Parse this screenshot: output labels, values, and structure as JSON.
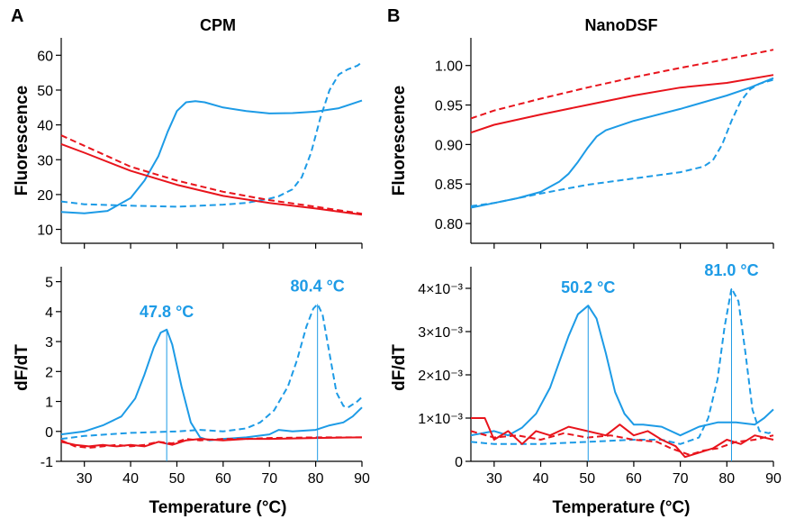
{
  "colors": {
    "blue": "#1d9be6",
    "red": "#e8141c",
    "axis": "#000000"
  },
  "xlabel": "Temperature (°C)",
  "chart_data": [
    {
      "id": "cpm_fluor",
      "panel_letter": "A",
      "title": "CPM",
      "type": "line",
      "ylabel": "Fluorescence",
      "xlim": [
        25,
        90
      ],
      "ylim": [
        6,
        65
      ],
      "xticks": [
        30,
        40,
        50,
        60,
        70,
        80,
        90
      ],
      "xtick_labels": [],
      "yticks": [
        10,
        20,
        30,
        40,
        50,
        60
      ],
      "ytick_labels": [
        "10",
        "20",
        "30",
        "40",
        "50",
        "60"
      ],
      "series": [
        {
          "color": "blue",
          "dashed": false,
          "x": [
            25,
            30,
            35,
            40,
            43,
            46,
            48,
            50,
            52,
            54,
            56,
            60,
            65,
            70,
            75,
            80,
            85,
            90
          ],
          "y": [
            15,
            14.6,
            15.3,
            19,
            24,
            31,
            38,
            44,
            46.5,
            46.8,
            46.5,
            45,
            44,
            43.3,
            43.4,
            43.8,
            44.8,
            47
          ]
        },
        {
          "color": "blue",
          "dashed": true,
          "x": [
            25,
            30,
            40,
            50,
            55,
            60,
            65,
            70,
            72,
            75,
            77,
            79,
            81,
            83,
            85,
            87,
            89,
            90
          ],
          "y": [
            18,
            17.2,
            16.8,
            16.5,
            16.8,
            17.1,
            17.6,
            18.8,
            19.5,
            21.5,
            25,
            32,
            42,
            50,
            54.5,
            56,
            57,
            58
          ]
        },
        {
          "color": "red",
          "dashed": false,
          "x": [
            25,
            30,
            40,
            50,
            60,
            70,
            80,
            90
          ],
          "y": [
            34.5,
            32,
            26.8,
            22.8,
            19.6,
            17.6,
            16,
            14.2
          ]
        },
        {
          "color": "red",
          "dashed": true,
          "x": [
            25,
            30,
            40,
            50,
            60,
            70,
            80,
            90
          ],
          "y": [
            37,
            34,
            28,
            24,
            20.8,
            18.4,
            16.5,
            14.5
          ]
        }
      ]
    },
    {
      "id": "cpm_deriv",
      "panel_letter": "",
      "title": "",
      "type": "line",
      "ylabel": "dF/dT",
      "xlim": [
        25,
        90
      ],
      "ylim": [
        -1,
        5.5
      ],
      "xticks": [
        30,
        40,
        50,
        60,
        70,
        80,
        90
      ],
      "xtick_labels": [
        "30",
        "40",
        "50",
        "60",
        "70",
        "80",
        "90"
      ],
      "yticks": [
        -1,
        0,
        1,
        2,
        3,
        4,
        5
      ],
      "ytick_labels": [
        "-1",
        "0",
        "1",
        "2",
        "3",
        "4",
        "5"
      ],
      "series": [
        {
          "color": "blue",
          "dashed": false,
          "x": [
            25,
            30,
            34,
            38,
            41,
            43,
            45,
            46.5,
            47.8,
            49,
            51,
            53,
            55,
            57,
            60,
            65,
            70,
            72,
            75,
            80,
            83,
            86,
            88,
            90
          ],
          "y": [
            -0.1,
            0,
            0.2,
            0.5,
            1.1,
            1.9,
            2.8,
            3.3,
            3.4,
            2.9,
            1.5,
            0.3,
            -0.2,
            -0.3,
            -0.25,
            -0.2,
            -0.1,
            0.05,
            0,
            0.05,
            0.2,
            0.3,
            0.5,
            0.8
          ]
        },
        {
          "color": "blue",
          "dashed": true,
          "x": [
            25,
            30,
            40,
            50,
            55,
            60,
            65,
            68,
            71,
            74,
            76,
            78,
            79.5,
            80.4,
            81.5,
            83,
            84.5,
            86,
            87,
            89,
            90
          ],
          "y": [
            -0.25,
            -0.15,
            -0.05,
            0,
            0.05,
            0,
            0.1,
            0.3,
            0.7,
            1.5,
            2.4,
            3.5,
            4.1,
            4.25,
            3.9,
            2.6,
            1.3,
            0.85,
            0.8,
            1,
            1.15
          ]
        },
        {
          "color": "red",
          "dashed": false,
          "x": [
            25,
            28,
            31,
            34,
            37,
            40,
            43,
            46,
            49,
            52,
            55,
            60,
            65,
            70,
            80,
            90
          ],
          "y": [
            -0.35,
            -0.45,
            -0.5,
            -0.45,
            -0.5,
            -0.45,
            -0.5,
            -0.35,
            -0.45,
            -0.3,
            -0.25,
            -0.3,
            -0.25,
            -0.25,
            -0.22,
            -0.2
          ]
        },
        {
          "color": "red",
          "dashed": true,
          "x": [
            25,
            28,
            31,
            34,
            37,
            40,
            43,
            46,
            49,
            52,
            55,
            60,
            65,
            70,
            80,
            90
          ],
          "y": [
            -0.3,
            -0.5,
            -0.55,
            -0.5,
            -0.45,
            -0.5,
            -0.45,
            -0.35,
            -0.4,
            -0.25,
            -0.3,
            -0.25,
            -0.25,
            -0.22,
            -0.2,
            -0.2
          ]
        }
      ],
      "peaks": [
        {
          "x": 47.8,
          "y": 3.4,
          "label": "47.8 °C"
        },
        {
          "x": 80.4,
          "y": 4.25,
          "label": "80.4 °C"
        }
      ]
    },
    {
      "id": "nanodsf_fluor",
      "panel_letter": "B",
      "title": "NanoDSF",
      "type": "line",
      "ylabel": "Fluorescence",
      "xlim": [
        25,
        90
      ],
      "ylim": [
        0.775,
        1.035
      ],
      "xticks": [
        30,
        40,
        50,
        60,
        70,
        80,
        90
      ],
      "xtick_labels": [],
      "yticks": [
        0.8,
        0.85,
        0.9,
        0.95,
        1.0
      ],
      "ytick_labels": [
        "0.80",
        "0.85",
        "0.90",
        "0.95",
        "1.00"
      ],
      "series": [
        {
          "color": "blue",
          "dashed": false,
          "x": [
            25,
            30,
            35,
            40,
            44,
            46,
            48,
            50,
            52,
            54,
            56,
            60,
            70,
            80,
            85,
            90
          ],
          "y": [
            0.82,
            0.826,
            0.832,
            0.84,
            0.853,
            0.863,
            0.878,
            0.895,
            0.91,
            0.918,
            0.922,
            0.93,
            0.945,
            0.962,
            0.972,
            0.984
          ]
        },
        {
          "color": "blue",
          "dashed": true,
          "x": [
            25,
            30,
            40,
            50,
            60,
            70,
            75,
            77,
            79,
            81,
            83,
            85,
            87,
            90
          ],
          "y": [
            0.822,
            0.826,
            0.838,
            0.849,
            0.857,
            0.865,
            0.872,
            0.88,
            0.9,
            0.93,
            0.955,
            0.97,
            0.977,
            0.982
          ]
        },
        {
          "color": "red",
          "dashed": false,
          "x": [
            25,
            30,
            40,
            50,
            60,
            70,
            80,
            90
          ],
          "y": [
            0.915,
            0.925,
            0.938,
            0.95,
            0.962,
            0.972,
            0.978,
            0.988
          ]
        },
        {
          "color": "red",
          "dashed": true,
          "x": [
            25,
            30,
            40,
            50,
            60,
            70,
            80,
            90
          ],
          "y": [
            0.933,
            0.943,
            0.958,
            0.972,
            0.985,
            0.997,
            1.008,
            1.02
          ]
        }
      ]
    },
    {
      "id": "nanodsf_deriv",
      "panel_letter": "",
      "title": "",
      "type": "line",
      "ylabel": "dF/dT",
      "xlim": [
        25,
        90
      ],
      "ylim": [
        0,
        0.0045
      ],
      "xticks": [
        30,
        40,
        50,
        60,
        70,
        80,
        90
      ],
      "xtick_labels": [
        "30",
        "40",
        "50",
        "60",
        "70",
        "80",
        "90"
      ],
      "yticks": [
        0,
        0.001,
        0.002,
        0.003,
        0.004
      ],
      "ytick_labels": [
        "0",
        "1×10⁻³",
        "2×10⁻³",
        "3×10⁻³",
        "4×10⁻³"
      ],
      "series": [
        {
          "color": "blue",
          "dashed": false,
          "x": [
            25,
            30,
            33,
            36,
            39,
            42,
            44,
            46,
            48,
            50.2,
            52,
            54,
            56,
            58,
            60,
            62,
            66,
            70,
            74,
            78,
            82,
            86,
            88,
            90
          ],
          "y": [
            0.0006,
            0.0007,
            0.0006,
            0.00078,
            0.0011,
            0.0017,
            0.0023,
            0.0029,
            0.0034,
            0.0036,
            0.0033,
            0.0025,
            0.0016,
            0.0011,
            0.00085,
            0.00085,
            0.0008,
            0.0006,
            0.0008,
            0.0009,
            0.0009,
            0.00085,
            0.001,
            0.0012
          ]
        },
        {
          "color": "blue",
          "dashed": true,
          "x": [
            25,
            30,
            40,
            50,
            60,
            66,
            70,
            74,
            76,
            78,
            79.5,
            81,
            82.5,
            84,
            85.5,
            87,
            89,
            90
          ],
          "y": [
            0.00045,
            0.0004,
            0.0004,
            0.00045,
            0.0005,
            0.0005,
            0.0004,
            0.00055,
            0.001,
            0.0019,
            0.0031,
            0.004,
            0.0037,
            0.0025,
            0.0012,
            0.0007,
            0.00065,
            0.0007
          ]
        },
        {
          "color": "red",
          "dashed": false,
          "x": [
            25,
            28,
            30,
            33,
            36,
            39,
            42,
            46,
            50,
            54,
            57,
            60,
            63,
            66,
            69,
            71,
            74,
            77,
            80,
            83,
            86,
            90
          ],
          "y": [
            0.001,
            0.001,
            0.0005,
            0.0007,
            0.0004,
            0.0007,
            0.0006,
            0.0008,
            0.0007,
            0.0006,
            0.00085,
            0.0006,
            0.0007,
            0.0005,
            0.00035,
            0.0001,
            0.0002,
            0.0003,
            0.0005,
            0.0004,
            0.0006,
            0.0005
          ]
        },
        {
          "color": "red",
          "dashed": true,
          "x": [
            25,
            30,
            35,
            40,
            45,
            50,
            55,
            60,
            65,
            68,
            72,
            75,
            78,
            82,
            86,
            90
          ],
          "y": [
            0.0007,
            0.00055,
            0.0006,
            0.0005,
            0.00065,
            0.00055,
            0.0006,
            0.0005,
            0.00045,
            0.0003,
            0.00015,
            0.00025,
            0.0003,
            0.00045,
            0.0005,
            0.0006
          ]
        }
      ],
      "peaks": [
        {
          "x": 50.2,
          "y": 0.0036,
          "label": "50.2 °C"
        },
        {
          "x": 81.0,
          "y": 0.004,
          "label": "81.0 °C"
        }
      ]
    }
  ]
}
